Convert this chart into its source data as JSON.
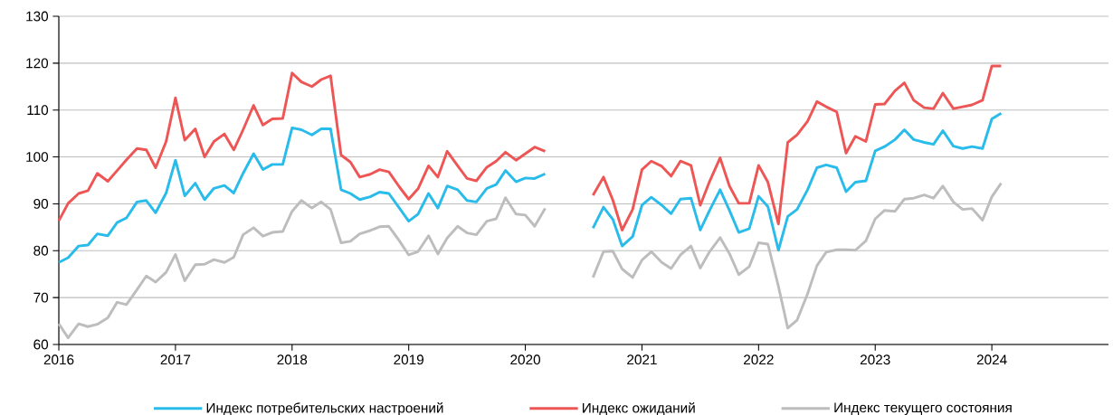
{
  "chart_data": {
    "type": "line",
    "x": [
      "2016-01",
      "2016-02",
      "2016-03",
      "2016-04",
      "2016-05",
      "2016-06",
      "2016-07",
      "2016-08",
      "2016-09",
      "2016-10",
      "2016-11",
      "2016-12",
      "2017-01",
      "2017-02",
      "2017-03",
      "2017-04",
      "2017-05",
      "2017-06",
      "2017-07",
      "2017-08",
      "2017-09",
      "2017-10",
      "2017-11",
      "2017-12",
      "2018-01",
      "2018-02",
      "2018-03",
      "2018-04",
      "2018-05",
      "2018-06",
      "2018-07",
      "2018-08",
      "2018-09",
      "2018-10",
      "2018-11",
      "2018-12",
      "2019-01",
      "2019-02",
      "2019-03",
      "2019-04",
      "2019-05",
      "2019-06",
      "2019-07",
      "2019-08",
      "2019-09",
      "2019-10",
      "2019-11",
      "2019-12",
      "2020-01",
      "2020-02",
      "2020-03",
      "2020-04",
      "2020-05",
      "2020-06",
      "2020-07",
      "2020-08",
      "2020-09",
      "2020-10",
      "2020-11",
      "2020-12",
      "2021-01",
      "2021-02",
      "2021-03",
      "2021-04",
      "2021-05",
      "2021-06",
      "2021-07",
      "2021-08",
      "2021-09",
      "2021-10",
      "2021-11",
      "2021-12",
      "2022-01",
      "2022-02",
      "2022-03",
      "2022-04",
      "2022-05",
      "2022-06",
      "2022-07",
      "2022-08",
      "2022-09",
      "2022-10",
      "2022-11",
      "2022-12",
      "2023-01",
      "2023-02",
      "2023-03",
      "2023-04",
      "2023-05",
      "2023-06",
      "2023-07",
      "2023-08",
      "2023-09",
      "2023-10",
      "2023-11",
      "2023-12",
      "2024-01",
      "2024-02"
    ],
    "series": [
      {
        "name": "Индекс потребительских настроений",
        "color": "#29bbea",
        "values": [
          77.5,
          78.5,
          81.0,
          81.2,
          83.6,
          83.2,
          86.0,
          87.0,
          90.4,
          90.7,
          88.1,
          92.3,
          99.3,
          91.7,
          94.4,
          90.9,
          93.3,
          93.9,
          92.3,
          96.5,
          100.7,
          97.3,
          98.4,
          98.4,
          106.2,
          105.8,
          104.7,
          106.0,
          106.0,
          93.0,
          92.2,
          90.9,
          91.5,
          92.5,
          92.2,
          89.1,
          86.3,
          87.8,
          92.2,
          89.1,
          93.8,
          93.0,
          90.7,
          90.4,
          93.3,
          94.1,
          97.1,
          94.7,
          95.5,
          95.4,
          96.4,
          null,
          null,
          null,
          null,
          84.8,
          89.3,
          86.7,
          81.0,
          83.0,
          89.7,
          91.4,
          89.7,
          87.9,
          91.0,
          91.2,
          84.4,
          88.6,
          93.0,
          88.6,
          83.9,
          84.7,
          91.6,
          89.4,
          80.1,
          87.3,
          88.8,
          93.0,
          97.7,
          98.3,
          97.7,
          92.6,
          94.6,
          94.9,
          101.3,
          102.2,
          103.7,
          105.8,
          103.7,
          103.1,
          102.7,
          105.6,
          102.3,
          101.8,
          102.2,
          101.8,
          108.1,
          109.3
        ]
      },
      {
        "name": "Индекс ожиданий",
        "color": "#ee5555",
        "values": [
          86.4,
          90.1,
          92.2,
          92.8,
          96.5,
          94.8,
          97.1,
          99.4,
          101.8,
          101.5,
          97.7,
          103.3,
          112.6,
          103.6,
          106.0,
          100.0,
          103.3,
          104.9,
          101.5,
          105.8,
          111.0,
          106.8,
          108.1,
          108.2,
          117.9,
          116.0,
          115.0,
          116.5,
          117.3,
          100.4,
          98.9,
          95.7,
          96.3,
          97.3,
          96.8,
          93.6,
          91.0,
          93.2,
          98.1,
          95.7,
          101.2,
          98.1,
          95.4,
          94.9,
          97.8,
          99.1,
          101.0,
          99.3,
          100.7,
          102.1,
          101.2,
          null,
          null,
          null,
          null,
          91.8,
          95.7,
          90.8,
          84.4,
          88.8,
          97.3,
          99.1,
          98.0,
          95.9,
          99.1,
          98.2,
          89.7,
          94.8,
          99.8,
          93.8,
          90.1,
          90.1,
          98.2,
          94.6,
          85.7,
          103.1,
          104.7,
          107.6,
          111.8,
          110.7,
          109.6,
          100.8,
          104.4,
          103.3,
          111.2,
          111.3,
          114.1,
          115.8,
          112.1,
          110.5,
          110.3,
          113.6,
          110.3,
          110.7,
          111.1,
          112.1,
          119.4,
          119.4
        ]
      },
      {
        "name": "Индекс текущего состояния",
        "color": "#bdbdbd",
        "values": [
          64.4,
          61.4,
          64.4,
          63.8,
          64.3,
          65.7,
          69.0,
          68.5,
          71.7,
          74.6,
          73.3,
          75.4,
          79.2,
          73.6,
          77.0,
          77.1,
          78.1,
          77.5,
          78.6,
          83.4,
          84.9,
          83.1,
          83.9,
          84.1,
          88.4,
          90.7,
          89.1,
          90.4,
          88.8,
          81.7,
          82.0,
          83.6,
          84.3,
          85.1,
          85.2,
          82.1,
          79.1,
          79.8,
          83.2,
          79.3,
          82.7,
          85.2,
          83.8,
          83.4,
          86.3,
          86.8,
          91.3,
          87.8,
          87.6,
          85.2,
          89.0,
          null,
          null,
          null,
          null,
          74.3,
          79.8,
          79.9,
          76.1,
          74.3,
          78.0,
          79.8,
          77.5,
          76.2,
          79.1,
          81.0,
          76.3,
          79.8,
          82.8,
          79.4,
          74.9,
          76.6,
          81.7,
          81.4,
          72.4,
          63.5,
          65.2,
          70.8,
          76.8,
          79.7,
          80.2,
          80.2,
          80.1,
          82.1,
          86.8,
          88.6,
          88.4,
          91.0,
          91.2,
          91.9,
          91.2,
          93.8,
          90.4,
          88.8,
          89.0,
          86.5,
          91.5,
          94.4
        ]
      }
    ],
    "xlim": [
      "2016",
      "2025"
    ],
    "xticks": [
      {
        "value": "2016",
        "label": "2016"
      },
      {
        "value": "2017",
        "label": "2017"
      },
      {
        "value": "2018",
        "label": "2018"
      },
      {
        "value": "2019",
        "label": "2019"
      },
      {
        "value": "2020",
        "label": "2020"
      },
      {
        "value": "2021",
        "label": "2021"
      },
      {
        "value": "2022",
        "label": "2022"
      },
      {
        "value": "2023",
        "label": "2023"
      },
      {
        "value": "2024",
        "label": "2024"
      }
    ],
    "ylim": [
      60,
      130
    ],
    "yticks": [
      60,
      70,
      80,
      90,
      100,
      110,
      120,
      130
    ],
    "grid": "y",
    "legend": "bottom",
    "marker": "none",
    "line_style": "solid"
  }
}
